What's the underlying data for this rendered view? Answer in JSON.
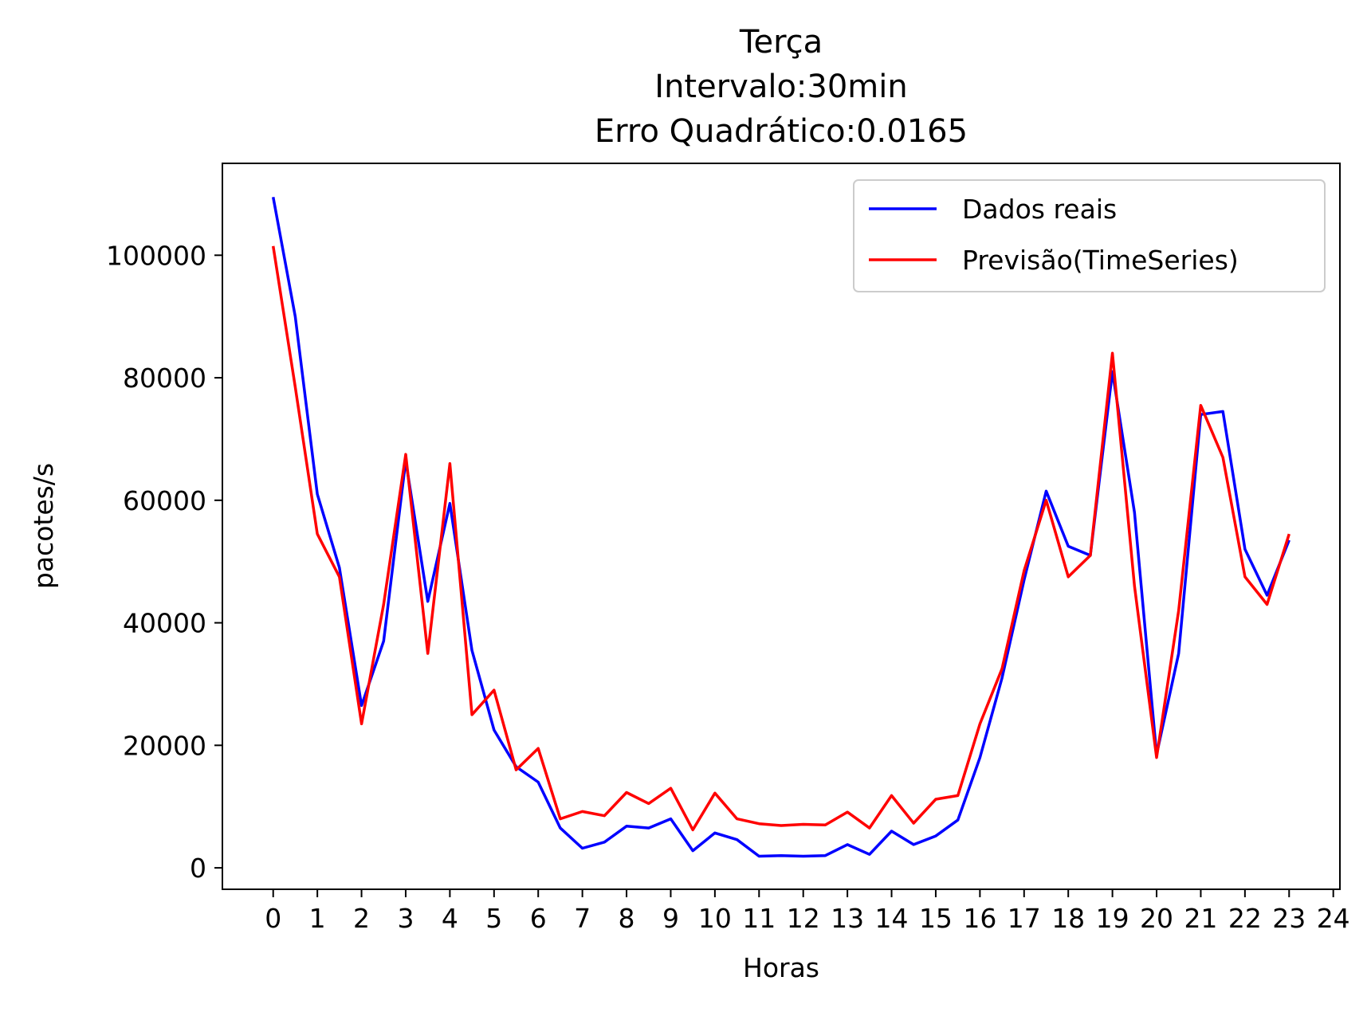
{
  "chart_data": {
    "type": "line",
    "title_lines": [
      "Terça",
      "Intervalo:30min",
      "Erro Quadrático:0.0165"
    ],
    "xlabel": "Horas",
    "ylabel": "pacotes/s",
    "xlim": [
      -1.15,
      24.15
    ],
    "ylim": [
      -3500,
      115000
    ],
    "xticks": [
      0,
      1,
      2,
      3,
      4,
      5,
      6,
      7,
      8,
      9,
      10,
      11,
      12,
      13,
      14,
      15,
      16,
      17,
      18,
      19,
      20,
      21,
      22,
      23,
      24
    ],
    "xtick_labels": [
      "0",
      "1",
      "2",
      "3",
      "4",
      "5",
      "6",
      "7",
      "8",
      "9",
      "10",
      "11",
      "12",
      "13",
      "14",
      "15",
      "16",
      "17",
      "18",
      "19",
      "20",
      "21",
      "22",
      "23",
      "24"
    ],
    "yticks": [
      0,
      20000,
      40000,
      60000,
      80000,
      100000
    ],
    "ytick_labels": [
      "0",
      "20000",
      "40000",
      "60000",
      "80000",
      "100000"
    ],
    "grid": false,
    "legend_position": "top-right",
    "x": [
      0,
      0.5,
      1,
      1.5,
      2,
      2.5,
      3,
      3.5,
      4,
      4.5,
      5,
      5.5,
      6,
      6.5,
      7,
      7.5,
      8,
      8.5,
      9,
      9.5,
      10,
      10.5,
      11,
      11.5,
      12,
      12.5,
      13,
      13.5,
      14,
      14.5,
      15,
      15.5,
      16,
      16.5,
      17,
      17.5,
      18,
      18.5,
      19,
      19.5,
      20,
      20.5,
      21,
      21.5,
      22,
      22.5,
      23
    ],
    "series": [
      {
        "name": "Dados reais",
        "color": "#0000ff",
        "values": [
          109500,
          90000,
          61000,
          49000,
          26500,
          37000,
          66500,
          43500,
          59500,
          35500,
          22500,
          16500,
          14000,
          6500,
          3200,
          4200,
          6800,
          6500,
          8000,
          2800,
          5700,
          4600,
          1900,
          2000,
          1900,
          2000,
          3800,
          2200,
          6000,
          3800,
          5200,
          7800,
          18000,
          31000,
          47000,
          61500,
          52500,
          51000,
          81000,
          58000,
          18500,
          35000,
          74000,
          74500,
          52000,
          44500,
          53500
        ]
      },
      {
        "name": "Previsão(TimeSeries)",
        "color": "#ff0000",
        "values": [
          101500,
          78500,
          54500,
          47500,
          23500,
          43000,
          67500,
          35000,
          66000,
          25000,
          29000,
          16000,
          19500,
          8000,
          9200,
          8500,
          12300,
          10500,
          13000,
          6200,
          12200,
          8000,
          7200,
          6900,
          7100,
          7000,
          9100,
          6500,
          11800,
          7300,
          11200,
          11800,
          23500,
          32500,
          48500,
          60000,
          47500,
          51000,
          84000,
          46000,
          18000,
          42000,
          75500,
          67000,
          47500,
          43000,
          54500
        ]
      }
    ]
  }
}
